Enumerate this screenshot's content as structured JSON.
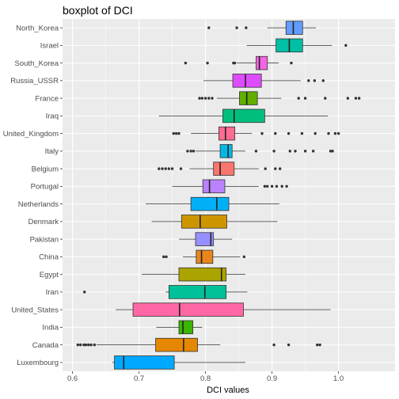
{
  "chart_data": {
    "type": "boxplot",
    "orientation": "horizontal",
    "title": "boxplot of DCI",
    "xlabel": "DCI values",
    "ylabel": "",
    "xlim": [
      0.585,
      1.085
    ],
    "xticks": [
      0.6,
      0.7,
      0.8,
      0.9,
      1.0
    ],
    "xtick_labels": [
      "0.6",
      "0.7",
      "0.8",
      "0.9",
      "1.0"
    ],
    "grid": true,
    "legend": "none",
    "series": [
      {
        "category": "North_Korea",
        "color": "#619CFF",
        "whisker_low": 0.893,
        "q1": 0.921,
        "median": 0.932,
        "q3": 0.946,
        "whisker_high": 0.966,
        "outliers": [
          0.805,
          0.847,
          0.861
        ]
      },
      {
        "category": "Israel",
        "color": "#00BFA4",
        "whisker_low": 0.862,
        "q1": 0.906,
        "median": 0.926,
        "q3": 0.946,
        "whisker_high": 0.99,
        "outliers": [
          1.011
        ]
      },
      {
        "category": "South_Korea",
        "color": "#F464E3",
        "whisker_low": 0.847,
        "q1": 0.876,
        "median": 0.881,
        "q3": 0.893,
        "whisker_high": 0.91,
        "outliers": [
          0.77,
          0.803,
          0.842,
          0.844,
          0.929
        ]
      },
      {
        "category": "Russia_USSR",
        "color": "#DE4CFF",
        "whisker_low": 0.797,
        "q1": 0.841,
        "median": 0.86,
        "q3": 0.884,
        "whisker_high": 0.943,
        "outliers": [
          0.955,
          0.964,
          0.977
        ]
      },
      {
        "category": "France",
        "color": "#60AE00",
        "whisker_low": 0.817,
        "q1": 0.851,
        "median": 0.862,
        "q3": 0.878,
        "whisker_high": 0.914,
        "outliers": [
          0.791,
          0.795,
          0.8,
          0.805,
          0.81,
          0.94,
          0.95,
          0.98,
          1.014,
          1.026,
          1.031
        ]
      },
      {
        "category": "Iraq",
        "color": "#00BF7D",
        "whisker_low": 0.73,
        "q1": 0.826,
        "median": 0.843,
        "q3": 0.889,
        "whisker_high": 0.984,
        "outliers": []
      },
      {
        "category": "United_Kingdom",
        "color": "#FF6C91",
        "whisker_low": 0.778,
        "q1": 0.82,
        "median": 0.83,
        "q3": 0.844,
        "whisker_high": 0.87,
        "outliers": [
          0.752,
          0.756,
          0.76,
          0.885,
          0.905,
          0.925,
          0.945,
          0.965,
          0.985,
          0.995,
          1.0
        ]
      },
      {
        "category": "Italy",
        "color": "#00B8E3",
        "whisker_low": 0.785,
        "q1": 0.822,
        "median": 0.834,
        "q3": 0.84,
        "whisker_high": 0.86,
        "outliers": [
          0.773,
          0.778,
          0.782,
          0.876,
          0.903,
          0.927,
          0.935,
          0.95,
          0.962,
          0.988,
          0.991
        ]
      },
      {
        "category": "Belgium",
        "color": "#F8766D",
        "whisker_low": 0.776,
        "q1": 0.812,
        "median": 0.822,
        "q3": 0.843,
        "whisker_high": 0.88,
        "outliers": [
          0.73,
          0.735,
          0.74,
          0.745,
          0.75,
          0.763,
          0.89,
          0.905,
          0.912
        ]
      },
      {
        "category": "Portugal",
        "color": "#B983FF",
        "whisker_low": 0.75,
        "q1": 0.796,
        "median": 0.806,
        "q3": 0.829,
        "whisker_high": 0.88,
        "outliers": [
          0.889,
          0.893,
          0.9,
          0.907,
          0.915,
          0.922
        ]
      },
      {
        "category": "Netherlands",
        "color": "#00B0F6",
        "whisker_low": 0.71,
        "q1": 0.778,
        "median": 0.817,
        "q3": 0.835,
        "whisker_high": 0.911,
        "outliers": []
      },
      {
        "category": "Denmark",
        "color": "#CD9600",
        "whisker_low": 0.719,
        "q1": 0.764,
        "median": 0.792,
        "q3": 0.832,
        "whisker_high": 0.908,
        "outliers": []
      },
      {
        "category": "Pakistan",
        "color": "#9590FF",
        "whisker_low": 0.76,
        "q1": 0.785,
        "median": 0.808,
        "q3": 0.812,
        "whisker_high": 0.84,
        "outliers": []
      },
      {
        "category": "China",
        "color": "#E7861B",
        "whisker_low": 0.766,
        "q1": 0.786,
        "median": 0.794,
        "q3": 0.811,
        "whisker_high": 0.852,
        "outliers": [
          0.737,
          0.741,
          0.858
        ]
      },
      {
        "category": "Egypt",
        "color": "#ABA300",
        "whisker_low": 0.704,
        "q1": 0.76,
        "median": 0.824,
        "q3": 0.831,
        "whisker_high": 0.86,
        "outliers": []
      },
      {
        "category": "Iran",
        "color": "#00C19A",
        "whisker_low": 0.74,
        "q1": 0.745,
        "median": 0.799,
        "q3": 0.831,
        "whisker_high": 0.863,
        "outliers": [
          0.618
        ]
      },
      {
        "category": "United_States",
        "color": "#FF67A4",
        "whisker_low": 0.665,
        "q1": 0.691,
        "median": 0.761,
        "q3": 0.857,
        "whisker_high": 0.988,
        "outliers": []
      },
      {
        "category": "India",
        "color": "#39B600",
        "whisker_low": 0.726,
        "q1": 0.76,
        "median": 0.766,
        "q3": 0.781,
        "whisker_high": 0.795,
        "outliers": []
      },
      {
        "category": "Canada",
        "color": "#E58700",
        "whisker_low": 0.636,
        "q1": 0.725,
        "median": 0.767,
        "q3": 0.788,
        "whisker_high": 0.822,
        "outliers": [
          0.608,
          0.612,
          0.617,
          0.62,
          0.624,
          0.628,
          0.633,
          0.903,
          0.925,
          0.968,
          0.972
        ]
      },
      {
        "category": "Luxembourg",
        "color": "#00A9FF",
        "whisker_low": 0.66,
        "q1": 0.663,
        "median": 0.677,
        "q3": 0.753,
        "whisker_high": 0.86,
        "outliers": []
      }
    ]
  }
}
